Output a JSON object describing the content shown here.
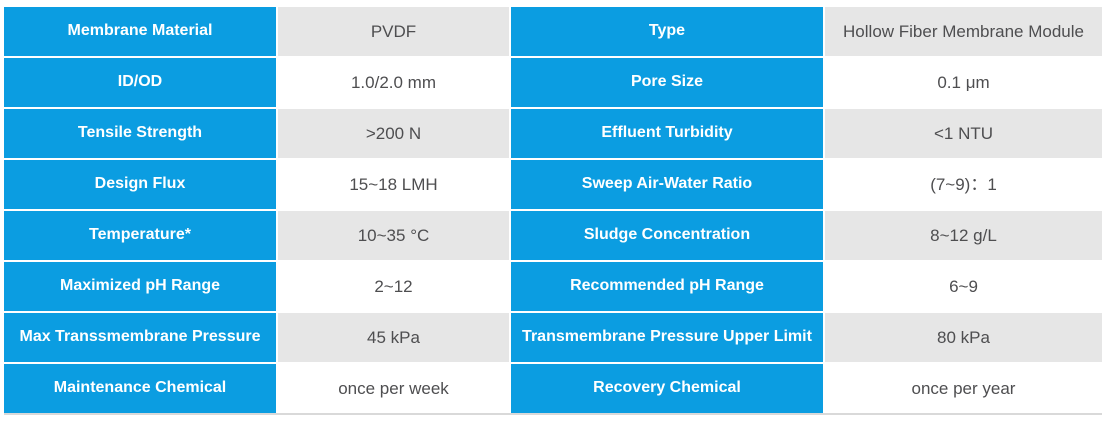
{
  "colors": {
    "header_blue": "#0b9de1",
    "row_shade_gray": "#e6e6e6",
    "value_text": "#4e4e50",
    "bottom_rule": "#d9d9d9"
  },
  "table": {
    "description": "Membrane module specification table",
    "columns": [
      "parameter",
      "value",
      "parameter",
      "value"
    ]
  },
  "rows": [
    {
      "l1": "Membrane Material",
      "v1": "PVDF",
      "l2": "Type",
      "v2": "Hollow Fiber Membrane Module"
    },
    {
      "l1": "ID/OD",
      "v1": "1.0/2.0 mm",
      "l2": "Pore Size",
      "v2": "0.1 μm"
    },
    {
      "l1": "Tensile Strength",
      "v1": ">200 N",
      "l2": "Effluent Turbidity",
      "v2": "<1 NTU"
    },
    {
      "l1": "Design Flux",
      "v1": "15~18 LMH",
      "l2": "Sweep Air-Water Ratio",
      "v2": "(7~9)：1"
    },
    {
      "l1": "Temperature*",
      "v1": "10~35 °C",
      "l2": "Sludge Concentration",
      "v2": "8~12 g/L"
    },
    {
      "l1": "Maximized pH Range",
      "v1": "2~12",
      "l2": "Recommended pH Range",
      "v2": "6~9"
    },
    {
      "l1": "Max Transsmembrane Pressure",
      "v1": "45 kPa",
      "l2": "Transmembrane Pressure Upper Limit",
      "v2": "80 kPa"
    },
    {
      "l1": "Maintenance Chemical",
      "v1": "once per week",
      "l2": "Recovery Chemical",
      "v2": "once per year"
    }
  ]
}
